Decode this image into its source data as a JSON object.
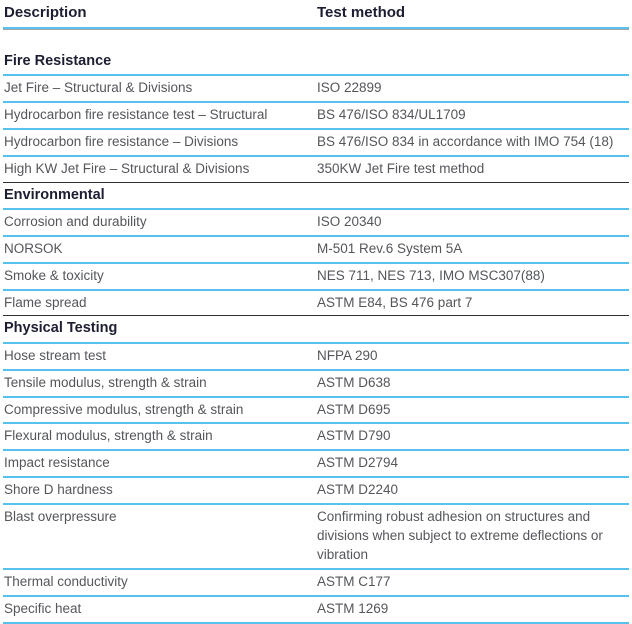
{
  "colors": {
    "divider_blue": "#58c1ec",
    "section_divider_dark": "#2f2f35",
    "first_section_divider": "#a0a3a8",
    "heading_text": "#1d1d33",
    "body_text": "#54565b",
    "background": "#ffffff"
  },
  "table": {
    "columns": [
      {
        "label": "Description"
      },
      {
        "label": "Test method"
      }
    ],
    "sections": [
      {
        "title": "Fire Resistance",
        "rows": [
          {
            "description": "Jet Fire – Structural & Divisions",
            "test_method": "ISO 22899"
          },
          {
            "description": "Hydrocarbon fire resistance test – Structural",
            "test_method": "BS 476/ISO 834/UL1709"
          },
          {
            "description": "Hydrocarbon fire resistance – Divisions",
            "test_method": "BS 476/ISO 834 in accordance with IMO 754 (18)"
          },
          {
            "description": "High KW Jet Fire – Structural & Divisions",
            "test_method": "350KW Jet Fire test method"
          }
        ]
      },
      {
        "title": "Environmental",
        "rows": [
          {
            "description": "Corrosion and durability",
            "test_method": "ISO 20340"
          },
          {
            "description": "NORSOK",
            "test_method": "M-501 Rev.6 System 5A"
          },
          {
            "description": "Smoke & toxicity",
            "test_method": "NES 711, NES 713, IMO MSC307(88)"
          },
          {
            "description": "Flame spread",
            "test_method": "ASTM E84, BS 476 part 7"
          }
        ]
      },
      {
        "title": "Physical Testing",
        "rows": [
          {
            "description": "Hose stream test",
            "test_method": "NFPA 290"
          },
          {
            "description": "Tensile modulus, strength & strain",
            "test_method": "ASTM D638"
          },
          {
            "description": "Compressive modulus, strength & strain",
            "test_method": "ASTM D695"
          },
          {
            "description": "Flexural modulus, strength & strain",
            "test_method": "ASTM D790"
          },
          {
            "description": "Impact resistance",
            "test_method": "ASTM D2794"
          },
          {
            "description": "Shore D hardness",
            "test_method": "ASTM D2240"
          },
          {
            "description": "Blast overpressure",
            "test_method": "Confirming robust adhesion on structures and divisions when subject to extreme deflections or vibration"
          },
          {
            "description": "Thermal conductivity",
            "test_method": "ASTM C177"
          },
          {
            "description": "Specific heat",
            "test_method": "ASTM 1269"
          }
        ]
      }
    ]
  }
}
